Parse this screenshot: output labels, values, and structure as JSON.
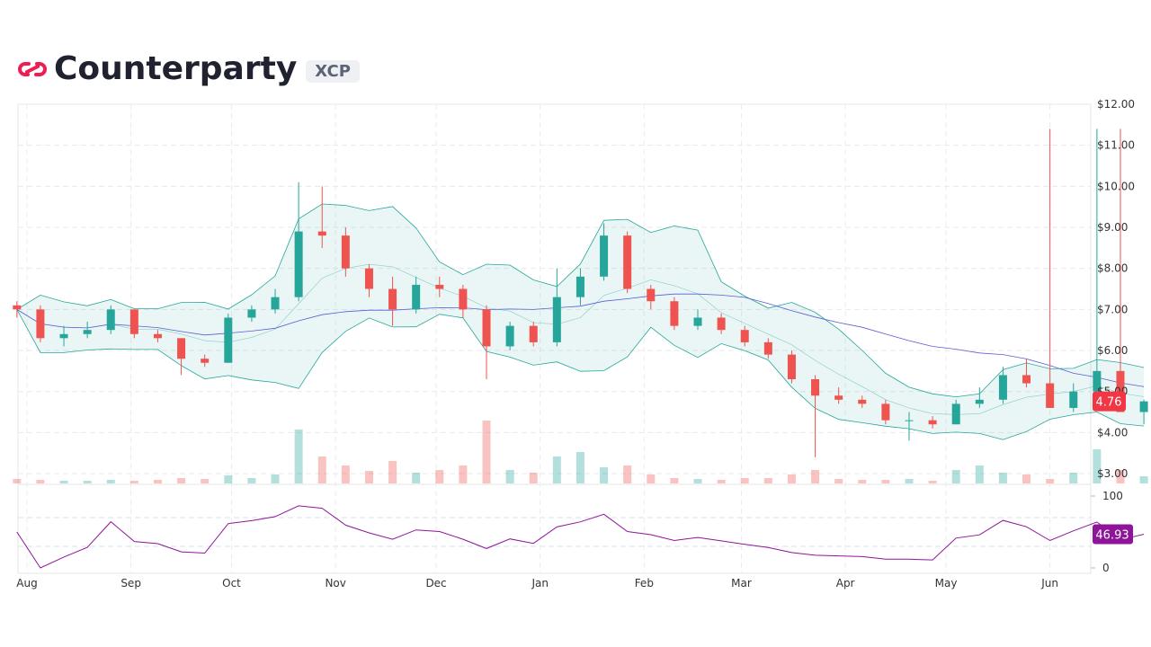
{
  "header": {
    "title": "Counterparty",
    "ticker": "XCP",
    "logo_color": "#ee1d52"
  },
  "chart_data": {
    "type": "candlestick",
    "price_axis": {
      "ticks": [
        "$12.00",
        "$11.00",
        "$10.00",
        "$9.00",
        "$8.00",
        "$7.00",
        "$6.00",
        "$5.00",
        "$4.00",
        "$3.00"
      ],
      "range": [
        3,
        12
      ]
    },
    "rsi_axis": {
      "ticks": [
        "100",
        "0"
      ],
      "range": [
        0,
        100
      ]
    },
    "x_ticks": [
      {
        "label": "Aug",
        "date": "2023-08-01"
      },
      {
        "label": "Sep",
        "date": "2023-09-01"
      },
      {
        "label": "Oct",
        "date": "2023-10-01"
      },
      {
        "label": "Nov",
        "date": "2023-11-01"
      },
      {
        "label": "Dec",
        "date": "2023-12-01"
      },
      {
        "label": "Jan",
        "date": "2024-01-01"
      },
      {
        "label": "Feb",
        "date": "2024-02-01"
      },
      {
        "label": "Mar",
        "date": "2024-03-01"
      },
      {
        "label": "Apr",
        "date": "2024-04-01"
      },
      {
        "label": "May",
        "date": "2024-05-01"
      },
      {
        "label": "Jun",
        "date": "2024-06-01"
      }
    ],
    "last_price": "4.76",
    "last_rsi": "46.93",
    "colors": {
      "up": "#26a69a",
      "down": "#ef5350",
      "band": "#26a69a",
      "ma_long": "#5b5bd6",
      "rsi": "#8e1599",
      "price_label": "#f23645"
    },
    "candles": [
      [
        "2023-07-29",
        7.1,
        7.2,
        6.8,
        7.0,
        5
      ],
      [
        "2023-08-05",
        7.0,
        7.1,
        6.2,
        6.3,
        4
      ],
      [
        "2023-08-12",
        6.3,
        6.6,
        6.1,
        6.4,
        3
      ],
      [
        "2023-08-19",
        6.4,
        6.7,
        6.3,
        6.5,
        3
      ],
      [
        "2023-08-26",
        6.5,
        7.1,
        6.4,
        7.0,
        4
      ],
      [
        "2023-09-02",
        7.0,
        7.0,
        6.3,
        6.4,
        3
      ],
      [
        "2023-09-09",
        6.4,
        6.5,
        6.2,
        6.3,
        4
      ],
      [
        "2023-09-16",
        6.3,
        6.3,
        5.4,
        5.8,
        6
      ],
      [
        "2023-09-23",
        5.8,
        5.9,
        5.6,
        5.7,
        5
      ],
      [
        "2023-09-30",
        5.7,
        6.9,
        5.7,
        6.8,
        9
      ],
      [
        "2023-10-07",
        6.8,
        7.1,
        6.7,
        7.0,
        6
      ],
      [
        "2023-10-14",
        7.0,
        7.5,
        6.9,
        7.3,
        10
      ],
      [
        "2023-10-21",
        7.3,
        10.1,
        7.2,
        8.9,
        60
      ],
      [
        "2023-10-28",
        8.9,
        10.0,
        8.5,
        8.8,
        30
      ],
      [
        "2023-11-04",
        8.8,
        9.0,
        7.8,
        8.0,
        20
      ],
      [
        "2023-11-11",
        8.0,
        8.1,
        7.3,
        7.5,
        14
      ],
      [
        "2023-11-18",
        7.5,
        7.8,
        6.6,
        7.0,
        25
      ],
      [
        "2023-11-25",
        7.0,
        7.8,
        6.9,
        7.6,
        12
      ],
      [
        "2023-12-02",
        7.6,
        7.8,
        7.3,
        7.5,
        15
      ],
      [
        "2023-12-09",
        7.5,
        7.6,
        6.8,
        7.0,
        20
      ],
      [
        "2023-12-16",
        7.0,
        7.1,
        5.3,
        6.1,
        70
      ],
      [
        "2023-12-23",
        6.1,
        6.7,
        6.0,
        6.6,
        15
      ],
      [
        "2023-12-30",
        6.6,
        6.7,
        6.1,
        6.2,
        12
      ],
      [
        "2024-01-06",
        6.2,
        8.0,
        6.1,
        7.3,
        30
      ],
      [
        "2024-01-13",
        7.3,
        8.0,
        7.1,
        7.8,
        35
      ],
      [
        "2024-01-20",
        7.8,
        9.1,
        7.7,
        8.8,
        18
      ],
      [
        "2024-01-27",
        8.8,
        8.9,
        7.4,
        7.5,
        20
      ],
      [
        "2024-02-03",
        7.5,
        7.6,
        7.0,
        7.2,
        10
      ],
      [
        "2024-02-10",
        7.2,
        7.3,
        6.5,
        6.6,
        6
      ],
      [
        "2024-02-17",
        6.6,
        7.0,
        6.5,
        6.8,
        5
      ],
      [
        "2024-02-24",
        6.8,
        6.9,
        6.4,
        6.5,
        4
      ],
      [
        "2024-03-02",
        6.5,
        6.6,
        6.1,
        6.2,
        6
      ],
      [
        "2024-03-09",
        6.2,
        6.3,
        5.8,
        5.9,
        6
      ],
      [
        "2024-03-16",
        5.9,
        6.0,
        5.2,
        5.3,
        10
      ],
      [
        "2024-03-23",
        5.3,
        5.4,
        3.4,
        4.9,
        15
      ],
      [
        "2024-03-30",
        4.9,
        5.1,
        4.7,
        4.8,
        5
      ],
      [
        "2024-04-06",
        4.8,
        4.9,
        4.6,
        4.7,
        4
      ],
      [
        "2024-04-13",
        4.7,
        4.8,
        4.2,
        4.3,
        4
      ],
      [
        "2024-04-20",
        4.3,
        4.5,
        3.8,
        4.3,
        5
      ],
      [
        "2024-04-27",
        4.3,
        4.4,
        4.1,
        4.2,
        3
      ],
      [
        "2024-05-04",
        4.2,
        4.8,
        4.2,
        4.7,
        15
      ],
      [
        "2024-05-11",
        4.7,
        5.1,
        4.6,
        4.8,
        20
      ],
      [
        "2024-05-18",
        4.8,
        5.6,
        4.7,
        5.4,
        12
      ],
      [
        "2024-05-25",
        5.4,
        5.8,
        5.1,
        5.2,
        10
      ],
      [
        "2024-06-01",
        5.2,
        11.4,
        4.6,
        4.6,
        5
      ],
      [
        "2024-06-08",
        4.6,
        5.2,
        4.5,
        5.0,
        12
      ],
      [
        "2024-06-15",
        5.0,
        11.4,
        4.9,
        5.5,
        38
      ],
      [
        "2024-06-22",
        5.5,
        11.4,
        4.5,
        4.5,
        15
      ],
      [
        "2024-06-29",
        4.5,
        4.8,
        4.2,
        4.76,
        8
      ]
    ]
  }
}
